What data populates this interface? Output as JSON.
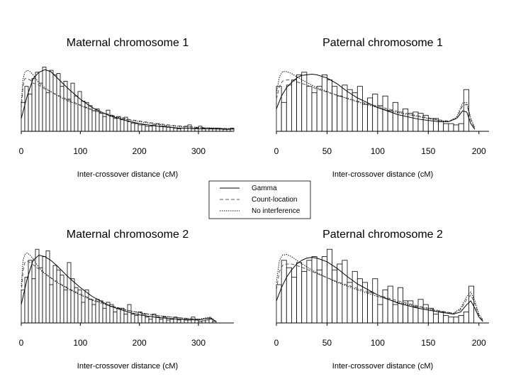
{
  "legend": {
    "entries": [
      {
        "label": "Gamma",
        "style": "solid"
      },
      {
        "label": "Count-location",
        "style": "dashed"
      },
      {
        "label": "No interference",
        "style": "dotted"
      }
    ]
  },
  "chart_data": [
    {
      "type": "bar",
      "title": "Maternal chromosome 1",
      "xlabel": "Inter-crossover distance (cM)",
      "ylabel": "",
      "xlim": [
        0,
        360
      ],
      "xticks": [
        0,
        100,
        200,
        300
      ],
      "bin_width": 6,
      "bin_start": 0,
      "ylim": [
        0,
        1.05
      ],
      "values": [
        0.45,
        0.7,
        0.58,
        0.82,
        0.92,
        0.75,
        1.0,
        0.6,
        0.95,
        0.88,
        0.9,
        0.7,
        0.78,
        0.5,
        0.75,
        0.55,
        0.62,
        0.47,
        0.45,
        0.4,
        0.32,
        0.35,
        0.28,
        0.23,
        0.33,
        0.25,
        0.2,
        0.23,
        0.18,
        0.22,
        0.15,
        0.13,
        0.12,
        0.1,
        0.1,
        0.08,
        0.08,
        0.1,
        0.12,
        0.08,
        0.08,
        0.07,
        0.06,
        0.05,
        0.04,
        0.05,
        0.08,
        0.1,
        0.04,
        0.05,
        0.08,
        0.05,
        0.04,
        0.05,
        0.05,
        0.05,
        0.04,
        0.03,
        0.03,
        0.05
      ],
      "series": [
        {
          "name": "Gamma",
          "x": [
            0,
            10,
            20,
            30,
            40,
            50,
            60,
            80,
            100,
            120,
            150,
            180,
            200,
            230,
            260,
            300,
            340,
            360
          ],
          "y": [
            0.2,
            0.55,
            0.82,
            0.92,
            0.96,
            0.93,
            0.84,
            0.66,
            0.5,
            0.37,
            0.24,
            0.16,
            0.12,
            0.08,
            0.055,
            0.04,
            0.035,
            0.035
          ]
        },
        {
          "name": "Count-location",
          "x": [
            0,
            3,
            6,
            10,
            15,
            20,
            30,
            40,
            60,
            80,
            100,
            120,
            150,
            180,
            200,
            230,
            260,
            300,
            340,
            360
          ],
          "y": [
            0.35,
            0.7,
            0.82,
            0.82,
            0.8,
            0.75,
            0.72,
            0.66,
            0.57,
            0.49,
            0.41,
            0.34,
            0.26,
            0.19,
            0.16,
            0.12,
            0.09,
            0.06,
            0.045,
            0.04
          ]
        },
        {
          "name": "No interference",
          "x": [
            0,
            3,
            6,
            10,
            15,
            20,
            25,
            30,
            40,
            60,
            80,
            100,
            120,
            150,
            180,
            200,
            230,
            260,
            300,
            340,
            360
          ],
          "y": [
            0.45,
            0.82,
            0.92,
            0.95,
            0.93,
            0.88,
            0.82,
            0.75,
            0.68,
            0.56,
            0.47,
            0.4,
            0.33,
            0.25,
            0.18,
            0.15,
            0.11,
            0.08,
            0.06,
            0.045,
            0.04
          ]
        }
      ]
    },
    {
      "type": "bar",
      "title": "Paternal chromosome 1",
      "xlabel": "Inter-crossover distance (cM)",
      "ylabel": "",
      "xlim": [
        0,
        210
      ],
      "xticks": [
        0,
        50,
        100,
        150,
        200
      ],
      "bin_width": 5,
      "bin_start": 0,
      "ylim": [
        0,
        1.05
      ],
      "values": [
        0.7,
        0.45,
        0.72,
        0.8,
        0.88,
        0.92,
        0.7,
        0.6,
        0.7,
        0.88,
        0.8,
        0.7,
        0.55,
        0.72,
        0.65,
        0.6,
        0.7,
        0.42,
        0.52,
        0.58,
        0.4,
        0.55,
        0.32,
        0.45,
        0.3,
        0.35,
        0.28,
        0.3,
        0.28,
        0.25,
        0.2,
        0.2,
        0.15,
        0.12,
        0.12,
        0.1,
        0.12,
        0.65,
        0.0,
        0.0
      ],
      "series": [
        {
          "name": "Gamma",
          "x": [
            0,
            5,
            10,
            15,
            20,
            25,
            30,
            35,
            40,
            50,
            60,
            70,
            80,
            100,
            120,
            140,
            160,
            170,
            178,
            184,
            188,
            192,
            196
          ],
          "y": [
            0.35,
            0.55,
            0.68,
            0.76,
            0.83,
            0.87,
            0.88,
            0.89,
            0.88,
            0.83,
            0.74,
            0.62,
            0.52,
            0.37,
            0.26,
            0.19,
            0.15,
            0.15,
            0.2,
            0.32,
            0.3,
            0.12,
            0.03
          ]
        },
        {
          "name": "Count-location",
          "x": [
            0,
            3,
            6,
            10,
            15,
            20,
            30,
            40,
            60,
            80,
            100,
            120,
            140,
            160,
            170,
            178,
            184,
            188,
            192,
            196
          ],
          "y": [
            0.5,
            0.7,
            0.78,
            0.8,
            0.8,
            0.77,
            0.72,
            0.66,
            0.56,
            0.47,
            0.39,
            0.31,
            0.24,
            0.18,
            0.16,
            0.2,
            0.4,
            0.42,
            0.18,
            0.04
          ]
        },
        {
          "name": "No interference",
          "x": [
            0,
            3,
            6,
            10,
            15,
            20,
            30,
            40,
            60,
            80,
            100,
            120,
            140,
            160,
            170,
            178,
            184,
            188,
            192,
            196
          ],
          "y": [
            0.6,
            0.85,
            0.93,
            0.93,
            0.9,
            0.85,
            0.76,
            0.68,
            0.56,
            0.46,
            0.37,
            0.29,
            0.23,
            0.17,
            0.15,
            0.22,
            0.44,
            0.45,
            0.2,
            0.05
          ]
        }
      ]
    },
    {
      "type": "bar",
      "title": "Maternal chromosome 2",
      "xlabel": "Inter-crossover distance (cM)",
      "ylabel": "",
      "xlim": [
        0,
        360
      ],
      "xticks": [
        0,
        100,
        200,
        300
      ],
      "bin_width": 6,
      "bin_start": 0,
      "ylim": [
        0,
        1.05
      ],
      "values": [
        0.45,
        0.62,
        0.85,
        0.6,
        1.0,
        0.75,
        0.9,
        0.98,
        0.52,
        0.78,
        0.72,
        0.65,
        0.45,
        0.82,
        0.6,
        0.48,
        0.45,
        0.28,
        0.45,
        0.32,
        0.25,
        0.32,
        0.3,
        0.2,
        0.28,
        0.25,
        0.15,
        0.2,
        0.2,
        0.12,
        0.25,
        0.12,
        0.1,
        0.15,
        0.12,
        0.08,
        0.05,
        0.12,
        0.08,
        0.05,
        0.08,
        0.04,
        0.05,
        0.08,
        0.04,
        0.05,
        0.04,
        0.04,
        0.08,
        0.04,
        0.02,
        0.03,
        0.04,
        0.05,
        0.02,
        0.0,
        0.0,
        0.0,
        0.0,
        0.0
      ],
      "series": [
        {
          "name": "Gamma",
          "x": [
            0,
            10,
            20,
            30,
            40,
            50,
            60,
            80,
            100,
            120,
            150,
            180,
            200,
            230,
            260,
            300,
            320,
            330
          ],
          "y": [
            0.25,
            0.6,
            0.85,
            0.92,
            0.9,
            0.85,
            0.78,
            0.62,
            0.48,
            0.36,
            0.23,
            0.15,
            0.11,
            0.075,
            0.055,
            0.04,
            0.07,
            0.02
          ]
        },
        {
          "name": "Count-location",
          "x": [
            0,
            3,
            6,
            10,
            15,
            20,
            30,
            40,
            60,
            80,
            100,
            120,
            150,
            180,
            200,
            230,
            260,
            300,
            320,
            330
          ],
          "y": [
            0.4,
            0.7,
            0.82,
            0.84,
            0.82,
            0.79,
            0.73,
            0.67,
            0.56,
            0.47,
            0.39,
            0.32,
            0.24,
            0.17,
            0.14,
            0.1,
            0.075,
            0.05,
            0.06,
            0.02
          ]
        },
        {
          "name": "No interference",
          "x": [
            0,
            3,
            6,
            10,
            15,
            20,
            25,
            30,
            40,
            60,
            80,
            100,
            120,
            150,
            180,
            200,
            230,
            260,
            300,
            320,
            330
          ],
          "y": [
            0.5,
            0.85,
            0.93,
            0.95,
            0.92,
            0.87,
            0.81,
            0.75,
            0.67,
            0.55,
            0.46,
            0.38,
            0.31,
            0.23,
            0.17,
            0.14,
            0.1,
            0.075,
            0.05,
            0.08,
            0.02
          ]
        }
      ]
    },
    {
      "type": "bar",
      "title": "Paternal chromosome 2",
      "xlabel": "Inter-crossover distance (cM)",
      "ylabel": "",
      "xlim": [
        0,
        210
      ],
      "xticks": [
        0,
        50,
        100,
        150,
        200
      ],
      "bin_width": 5,
      "bin_start": 0,
      "ylim": [
        0,
        1.05
      ],
      "values": [
        0.52,
        0.85,
        0.75,
        0.62,
        0.82,
        0.7,
        0.85,
        0.9,
        0.72,
        0.9,
        1.0,
        0.72,
        0.8,
        0.85,
        0.55,
        0.7,
        0.6,
        0.55,
        0.42,
        0.6,
        0.25,
        0.45,
        0.5,
        0.25,
        0.48,
        0.3,
        0.3,
        0.22,
        0.32,
        0.25,
        0.2,
        0.12,
        0.15,
        0.1,
        0.08,
        0.08,
        0.1,
        0.15,
        0.5,
        0.0
      ],
      "series": [
        {
          "name": "Gamma",
          "x": [
            0,
            5,
            10,
            15,
            20,
            25,
            30,
            35,
            40,
            50,
            60,
            70,
            80,
            100,
            120,
            140,
            160,
            175,
            182,
            188,
            192,
            196,
            200,
            204
          ],
          "y": [
            0.3,
            0.48,
            0.62,
            0.72,
            0.8,
            0.85,
            0.88,
            0.89,
            0.88,
            0.83,
            0.74,
            0.63,
            0.53,
            0.38,
            0.27,
            0.2,
            0.15,
            0.12,
            0.15,
            0.25,
            0.3,
            0.2,
            0.08,
            0.02
          ]
        },
        {
          "name": "Count-location",
          "x": [
            0,
            3,
            6,
            10,
            15,
            20,
            30,
            40,
            60,
            80,
            100,
            120,
            140,
            160,
            175,
            182,
            188,
            192,
            196,
            200,
            204
          ],
          "y": [
            0.45,
            0.7,
            0.78,
            0.8,
            0.8,
            0.78,
            0.73,
            0.67,
            0.56,
            0.47,
            0.38,
            0.3,
            0.23,
            0.17,
            0.13,
            0.18,
            0.32,
            0.38,
            0.26,
            0.1,
            0.03
          ]
        },
        {
          "name": "No interference",
          "x": [
            0,
            3,
            6,
            10,
            15,
            20,
            30,
            40,
            60,
            80,
            100,
            120,
            140,
            160,
            175,
            182,
            188,
            192,
            196,
            200,
            204
          ],
          "y": [
            0.55,
            0.85,
            0.92,
            0.93,
            0.9,
            0.85,
            0.76,
            0.68,
            0.55,
            0.45,
            0.36,
            0.28,
            0.22,
            0.16,
            0.13,
            0.2,
            0.36,
            0.42,
            0.3,
            0.12,
            0.04
          ]
        }
      ]
    }
  ]
}
